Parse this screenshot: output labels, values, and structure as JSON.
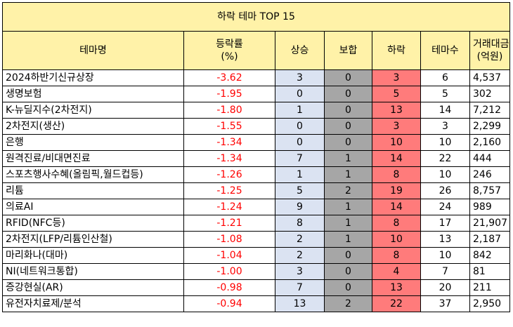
{
  "title": "하락 테마 TOP 15",
  "headers": {
    "name": "테마명",
    "rate": "등락률\n(%)",
    "up": "상승",
    "flat": "보합",
    "down": "하락",
    "count": "테마수",
    "volume": "거래대금\n(억원)"
  },
  "rows": [
    {
      "name": "2024하반기신규상장",
      "rate": "-3.62",
      "up": "3",
      "flat": "0",
      "down": "3",
      "count": "6",
      "volume": "4,537"
    },
    {
      "name": "생명보험",
      "rate": "-1.95",
      "up": "0",
      "flat": "0",
      "down": "5",
      "count": "5",
      "volume": "302"
    },
    {
      "name": "K-뉴딜지수(2차전지)",
      "rate": "-1.80",
      "up": "1",
      "flat": "0",
      "down": "13",
      "count": "14",
      "volume": "7,212"
    },
    {
      "name": "2차전지(생산)",
      "rate": "-1.55",
      "up": "0",
      "flat": "0",
      "down": "3",
      "count": "3",
      "volume": "2,299"
    },
    {
      "name": "은행",
      "rate": "-1.34",
      "up": "0",
      "flat": "0",
      "down": "10",
      "count": "10",
      "volume": "2,160"
    },
    {
      "name": "원격진료/비대면진료",
      "rate": "-1.34",
      "up": "7",
      "flat": "1",
      "down": "14",
      "count": "22",
      "volume": "444"
    },
    {
      "name": "스포츠행사수혜(올림픽,월드컵등)",
      "rate": "-1.26",
      "up": "1",
      "flat": "1",
      "down": "8",
      "count": "10",
      "volume": "246"
    },
    {
      "name": "리튬",
      "rate": "-1.25",
      "up": "5",
      "flat": "2",
      "down": "19",
      "count": "26",
      "volume": "8,757"
    },
    {
      "name": "의료AI",
      "rate": "-1.24",
      "up": "9",
      "flat": "1",
      "down": "14",
      "count": "24",
      "volume": "989"
    },
    {
      "name": "RFID(NFC등)",
      "rate": "-1.21",
      "up": "8",
      "flat": "1",
      "down": "8",
      "count": "17",
      "volume": "21,907"
    },
    {
      "name": "2차전지(LFP/리튬인산철)",
      "rate": "-1.08",
      "up": "2",
      "flat": "1",
      "down": "10",
      "count": "13",
      "volume": "2,187"
    },
    {
      "name": "마리화나(대마)",
      "rate": "-1.04",
      "up": "2",
      "flat": "0",
      "down": "8",
      "count": "10",
      "volume": "842"
    },
    {
      "name": "NI(네트워크통합)",
      "rate": "-1.00",
      "up": "3",
      "flat": "0",
      "down": "4",
      "count": "7",
      "volume": "81"
    },
    {
      "name": "증강현실(AR)",
      "rate": "-0.98",
      "up": "7",
      "flat": "0",
      "down": "13",
      "count": "20",
      "volume": "211"
    },
    {
      "name": "유전자치료제/분석",
      "rate": "-0.94",
      "up": "13",
      "flat": "2",
      "down": "22",
      "count": "37",
      "volume": "2,950"
    }
  ],
  "colors": {
    "header_bg": "#fff2a8",
    "up_bg": "#dbe3f2",
    "flat_bg": "#a6a6a6",
    "down_bg": "#ff7b7b",
    "rate_text": "#ff0000"
  }
}
